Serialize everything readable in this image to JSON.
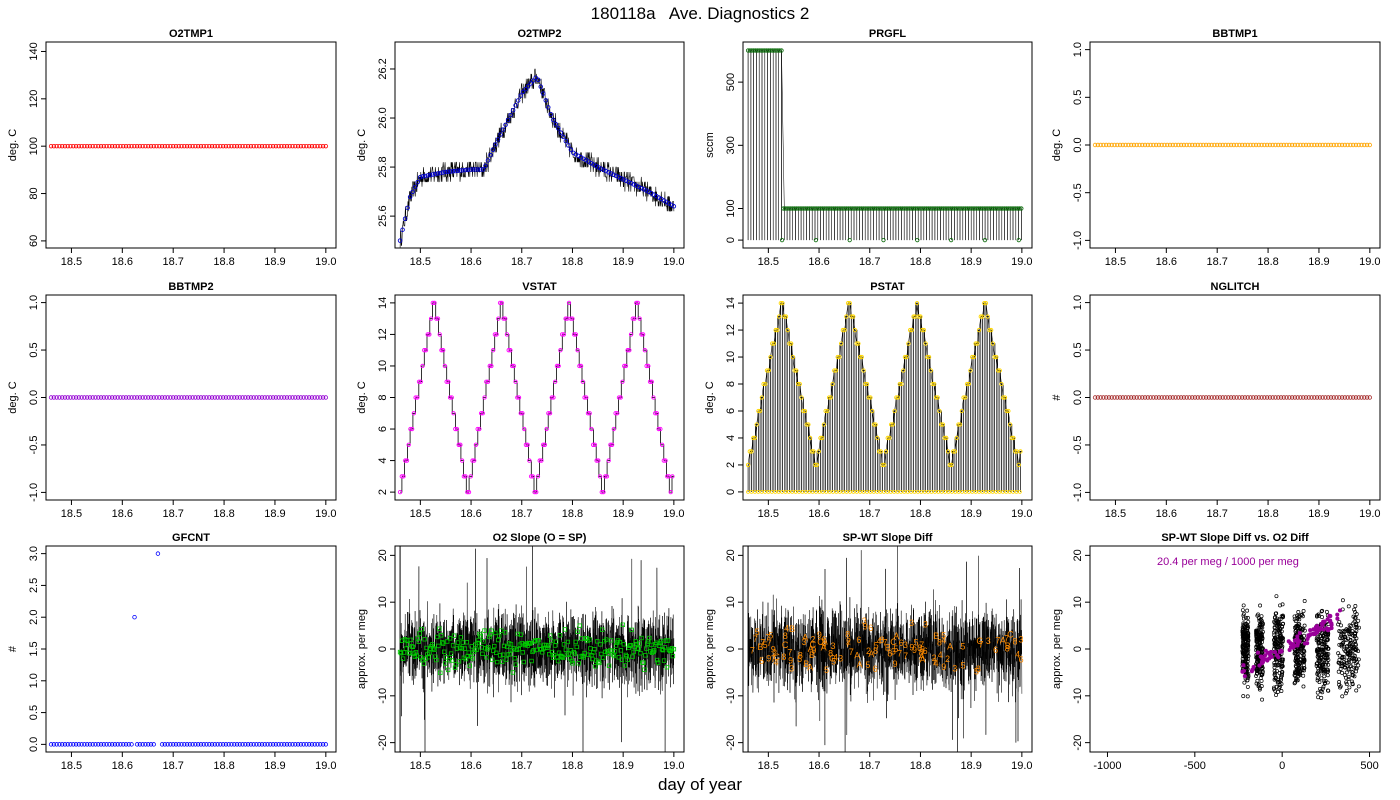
{
  "figure": {
    "title": "180118a   Ave. Diagnostics 2",
    "xlabel": "day of year"
  },
  "chart_data": [
    {
      "id": "o2tmp1",
      "type": "scatter",
      "title": "O2TMP1",
      "ylabel": "deg. C",
      "xlim": [
        18.45,
        19.02
      ],
      "ylim": [
        57,
        144
      ],
      "xticks": [
        "18.5",
        "18.6",
        "18.7",
        "18.8",
        "18.9",
        "19.0"
      ],
      "yticks": [
        "60",
        "80",
        "100",
        "120",
        "140"
      ],
      "series": [
        {
          "x_range": [
            18.46,
            19.0
          ],
          "y": 100,
          "color": "#ff0000",
          "marker": "circle"
        }
      ]
    },
    {
      "id": "o2tmp2",
      "type": "line",
      "title": "O2TMP2",
      "ylabel": "deg. C",
      "xlim": [
        18.45,
        19.02
      ],
      "ylim": [
        25.47,
        26.31
      ],
      "xticks": [
        "18.5",
        "18.6",
        "18.7",
        "18.8",
        "18.9",
        "19.0"
      ],
      "yticks": [
        "25.6",
        "25.8",
        "26.0",
        "26.2"
      ],
      "series": [
        {
          "trend_x": [
            18.46,
            18.48,
            18.5,
            18.55,
            18.6,
            18.625,
            18.65,
            18.7,
            18.73,
            18.76,
            18.8,
            18.85,
            18.9,
            18.95,
            19.0
          ],
          "trend_y": [
            25.5,
            25.68,
            25.76,
            25.78,
            25.79,
            25.79,
            25.9,
            26.1,
            26.17,
            26.0,
            25.86,
            25.8,
            25.75,
            25.7,
            25.64
          ],
          "line_color": "#000000",
          "marker_color": "#0000cc"
        }
      ]
    },
    {
      "id": "prgfl",
      "type": "line",
      "title": "PRGFL",
      "ylabel": "sccm",
      "xlim": [
        18.45,
        19.02
      ],
      "ylim": [
        -25,
        627
      ],
      "xticks": [
        "18.5",
        "18.6",
        "18.7",
        "18.8",
        "18.9",
        "19.0"
      ],
      "yticks": [
        "0",
        "100",
        "300",
        "500"
      ],
      "series": [
        {
          "segments": [
            {
              "x": [
                18.46,
                18.527
              ],
              "y": 600
            },
            {
              "x": [
                18.527,
                19.0
              ],
              "y": 100
            }
          ],
          "low_value": 0,
          "low_every_x": 0.0667,
          "line_color": "#000000",
          "marker_color": "#006400"
        }
      ]
    },
    {
      "id": "bbtmp1",
      "type": "scatter",
      "title": "BBTMP1",
      "ylabel": "deg. C",
      "xlim": [
        18.45,
        19.02
      ],
      "ylim": [
        -1.08,
        1.08
      ],
      "xticks": [
        "18.5",
        "18.6",
        "18.7",
        "18.8",
        "18.9",
        "19.0"
      ],
      "yticks": [
        "-1.0",
        "-0.5",
        "0.0",
        "0.5",
        "1.0"
      ],
      "series": [
        {
          "x_range": [
            18.46,
            19.0
          ],
          "y": 0,
          "color": "#ffa500",
          "marker": "circle"
        }
      ]
    },
    {
      "id": "bbtmp2",
      "type": "scatter",
      "title": "BBTMP2",
      "ylabel": "deg. C",
      "xlim": [
        18.45,
        19.02
      ],
      "ylim": [
        -1.08,
        1.08
      ],
      "xticks": [
        "18.5",
        "18.6",
        "18.7",
        "18.8",
        "18.9",
        "19.0"
      ],
      "yticks": [
        "-1.0",
        "-0.5",
        "0.0",
        "0.5",
        "1.0"
      ],
      "series": [
        {
          "x_range": [
            18.46,
            19.0
          ],
          "y": 0,
          "color": "#9400d3",
          "marker": "circle"
        }
      ]
    },
    {
      "id": "vstat",
      "type": "line",
      "title": "VSTAT",
      "ylabel": "deg. C",
      "xlim": [
        18.45,
        19.02
      ],
      "ylim": [
        1.5,
        14.5
      ],
      "xticks": [
        "18.5",
        "18.6",
        "18.7",
        "18.8",
        "18.9",
        "19.0"
      ],
      "yticks": [
        "2",
        "4",
        "6",
        "8",
        "10",
        "12",
        "14"
      ],
      "series": [
        {
          "x_start": 18.46,
          "x_end": 19.0,
          "min": 2,
          "max": 14,
          "step": 1,
          "period": 0.1333,
          "line_color": "#000000",
          "marker_color": "#ff00ff"
        }
      ]
    },
    {
      "id": "pstat",
      "type": "line",
      "title": "PSTAT",
      "ylabel": "deg. C",
      "xlim": [
        18.45,
        19.02
      ],
      "ylim": [
        -0.6,
        14.6
      ],
      "xticks": [
        "18.5",
        "18.6",
        "18.7",
        "18.8",
        "18.9",
        "19.0"
      ],
      "yticks": [
        "0",
        "2",
        "4",
        "6",
        "8",
        "10",
        "12",
        "14"
      ],
      "series": [
        {
          "x_start": 18.46,
          "x_end": 19.0,
          "min": 2,
          "max": 14,
          "step": 1,
          "period": 0.1333,
          "low_value": 0,
          "line_color": "#000000",
          "marker_color": "#ffd700"
        }
      ]
    },
    {
      "id": "nglitch",
      "type": "scatter",
      "title": "NGLITCH",
      "ylabel": "#",
      "xlim": [
        18.45,
        19.02
      ],
      "ylim": [
        -1.08,
        1.08
      ],
      "xticks": [
        "18.5",
        "18.6",
        "18.7",
        "18.8",
        "18.9",
        "19.0"
      ],
      "yticks": [
        "-1.0",
        "-0.5",
        "0.0",
        "0.5",
        "1.0"
      ],
      "series": [
        {
          "x_range": [
            18.46,
            19.0
          ],
          "y": 0,
          "color": "#a52a2a",
          "marker": "circle"
        }
      ]
    },
    {
      "id": "gfcnt",
      "type": "scatter",
      "title": "GFCNT",
      "ylabel": "#",
      "xlim": [
        18.45,
        19.02
      ],
      "ylim": [
        -0.12,
        3.12
      ],
      "xticks": [
        "18.5",
        "18.6",
        "18.7",
        "18.8",
        "18.9",
        "19.0"
      ],
      "yticks": [
        "0.0",
        "0.5",
        "1.0",
        "1.5",
        "2.0",
        "2.5",
        "3.0"
      ],
      "series": [
        {
          "x_range": [
            18.46,
            19.0
          ],
          "y": 0,
          "color": "#0000ff",
          "marker": "circle",
          "outliers": [
            {
              "x": 18.624,
              "y": 2
            },
            {
              "x": 18.67,
              "y": 3
            }
          ]
        }
      ]
    },
    {
      "id": "o2slope",
      "type": "line",
      "title": "O2 Slope (O = SP)",
      "ylabel": "approx. per meg",
      "xlim": [
        18.45,
        19.02
      ],
      "ylim": [
        -22,
        22
      ],
      "xticks": [
        "18.5",
        "18.6",
        "18.7",
        "18.8",
        "18.9",
        "19.0"
      ],
      "yticks": [
        "-20",
        "-10",
        "0",
        "10",
        "20"
      ],
      "series": [
        {
          "x_range": [
            18.46,
            19.0
          ],
          "mean": 0,
          "spread": 9,
          "line_color": "#000000",
          "marker_color": "#00cc00",
          "marker": "square"
        }
      ]
    },
    {
      "id": "spwt",
      "type": "line",
      "title": "SP-WT Slope Diff",
      "ylabel": "approx. per meg",
      "xlim": [
        18.45,
        19.02
      ],
      "ylim": [
        -22,
        22
      ],
      "xticks": [
        "18.5",
        "18.6",
        "18.7",
        "18.8",
        "18.9",
        "19.0"
      ],
      "yticks": [
        "-20",
        "-10",
        "0",
        "10",
        "20"
      ],
      "series": [
        {
          "x_range": [
            18.46,
            19.0
          ],
          "mean": 0,
          "spread": 10,
          "line_color": "#000000",
          "marker_color": "#ff8c00",
          "marker": "symbols",
          "symbols": [
            "2",
            "3",
            "4",
            "5",
            "6",
            "7",
            "8",
            "9",
            "A",
            "B",
            "C"
          ]
        }
      ]
    },
    {
      "id": "spwt-vs-o2",
      "type": "scatter",
      "title": "SP-WT Slope Diff vs. O2 Diff",
      "ylabel": "approx. per meg",
      "xlim": [
        -1100,
        560
      ],
      "ylim": [
        -22,
        22
      ],
      "xticks": [
        "-1000",
        "-500",
        "0",
        "500"
      ],
      "yticks": [
        "-20",
        "-10",
        "0",
        "10",
        "20"
      ],
      "annotation": "20.4 per meg / 1000 per meg",
      "annotation_color": "#990099",
      "series": [
        {
          "clusters": [
            {
              "x": -210,
              "w": 35
            },
            {
              "x": -130,
              "w": 40
            },
            {
              "x": -20,
              "w": 55
            },
            {
              "x": 100,
              "w": 60
            },
            {
              "x": 230,
              "w": 70
            },
            {
              "x": 380,
              "w": 120
            }
          ],
          "color": "#000000",
          "fit_color": "#990099",
          "marker": "circle"
        }
      ]
    }
  ]
}
